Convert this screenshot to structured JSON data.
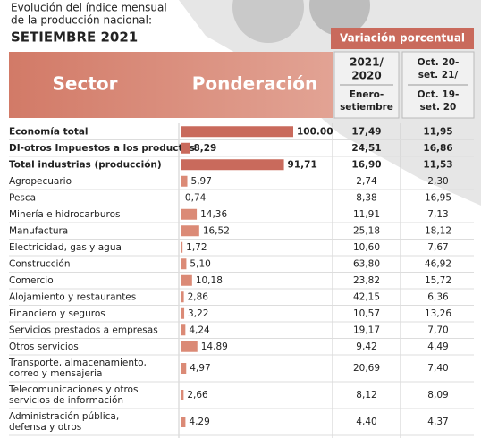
{
  "header": {
    "title_lines": [
      "Evolución del índice mensual",
      "de la producción nacional:"
    ],
    "subtitle": "SETIEMBRE 2021"
  },
  "table": {
    "col_sector": "Sector",
    "col_weight": "Ponderación",
    "group_header": "Variación porcentual",
    "col_year": [
      "2021/",
      "2020"
    ],
    "col_year_sub": [
      "Enero-",
      "setiembre"
    ],
    "col_month": [
      "Oct. 20-",
      "set. 21/"
    ],
    "col_month_sub": [
      "Oct. 19-",
      "set. 20"
    ],
    "rows": [
      {
        "sector": [
          "Economía total"
        ],
        "weight": 100,
        "weight_label": "100.00",
        "var_year": "17,49",
        "var_month": "11,95",
        "bold": true
      },
      {
        "sector": [
          "DI-otros Impuestos a los productos"
        ],
        "weight": 8.29,
        "weight_label": "8,29",
        "var_year": "24,51",
        "var_month": "16,86",
        "bold": true
      },
      {
        "sector": [
          "Total industrias (producción)"
        ],
        "weight": 91.71,
        "weight_label": "91,71",
        "var_year": "16,90",
        "var_month": "11,53",
        "bold": true
      },
      {
        "sector": [
          "Agropecuario"
        ],
        "weight": 5.97,
        "weight_label": "5,97",
        "var_year": "2,74",
        "var_month": "2,30",
        "bold": false
      },
      {
        "sector": [
          "Pesca"
        ],
        "weight": 0.74,
        "weight_label": "0,74",
        "var_year": "8,38",
        "var_month": "16,95",
        "bold": false
      },
      {
        "sector": [
          "Minería e hidrocarburos"
        ],
        "weight": 14.36,
        "weight_label": "14,36",
        "var_year": "11,91",
        "var_month": "7,13",
        "bold": false
      },
      {
        "sector": [
          "Manufactura"
        ],
        "weight": 16.52,
        "weight_label": "16,52",
        "var_year": "25,18",
        "var_month": "18,12",
        "bold": false
      },
      {
        "sector": [
          "Electricidad, gas y agua"
        ],
        "weight": 1.72,
        "weight_label": "1,72",
        "var_year": "10,60",
        "var_month": "7,67",
        "bold": false
      },
      {
        "sector": [
          "Construcción"
        ],
        "weight": 5.1,
        "weight_label": "5,10",
        "var_year": "63,80",
        "var_month": "46,92",
        "bold": false
      },
      {
        "sector": [
          "Comercio"
        ],
        "weight": 10.18,
        "weight_label": "10,18",
        "var_year": "23,82",
        "var_month": "15,72",
        "bold": false
      },
      {
        "sector": [
          "Alojamiento y restaurantes"
        ],
        "weight": 2.86,
        "weight_label": "2,86",
        "var_year": "42,15",
        "var_month": "6,36",
        "bold": false
      },
      {
        "sector": [
          "Financiero y seguros"
        ],
        "weight": 3.22,
        "weight_label": "3,22",
        "var_year": "10,57",
        "var_month": "13,26",
        "bold": false
      },
      {
        "sector": [
          "Servicios prestados a empresas"
        ],
        "weight": 4.24,
        "weight_label": "4,24",
        "var_year": "19,17",
        "var_month": "7,70",
        "bold": false
      },
      {
        "sector": [
          "Otros servicios"
        ],
        "weight": 14.89,
        "weight_label": "14,89",
        "var_year": "9,42",
        "var_month": "4,49",
        "bold": false
      },
      {
        "sector": [
          "Transporte, almacenamiento,",
          "correo y mensajeria"
        ],
        "weight": 4.97,
        "weight_label": "4,97",
        "var_year": "20,69",
        "var_month": "7,40",
        "bold": false
      },
      {
        "sector": [
          "Telecomunicaciones y otros",
          "servicios de información"
        ],
        "weight": 2.66,
        "weight_label": "2,66",
        "var_year": "8,12",
        "var_month": "8,09",
        "bold": false
      },
      {
        "sector": [
          "Administración pública,",
          "defensa y otros"
        ],
        "weight": 4.29,
        "weight_label": "4,29",
        "var_year": "4,40",
        "var_month": "4,37",
        "bold": false
      }
    ]
  }
}
